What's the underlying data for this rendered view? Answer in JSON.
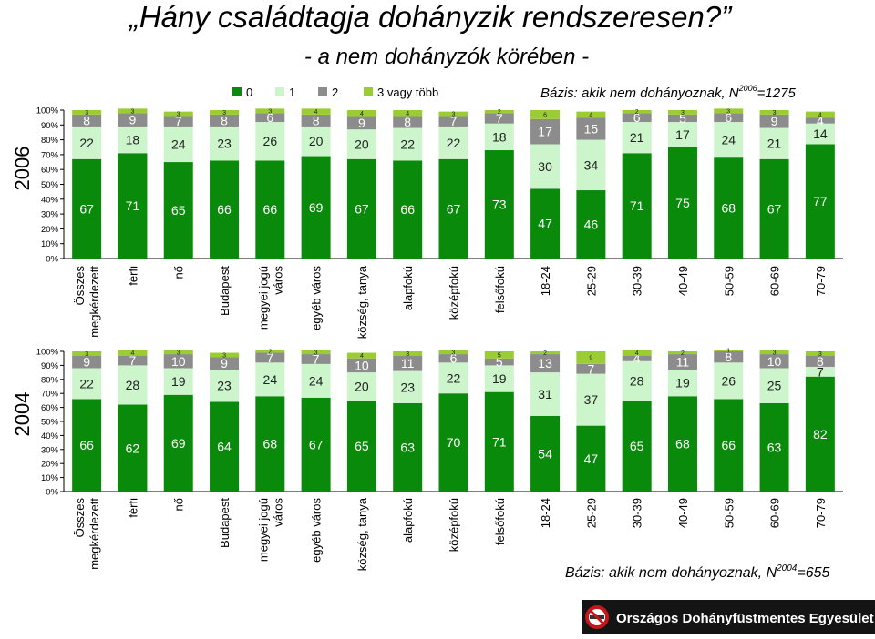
{
  "title": "„Hány családtagja dohányzik rendszeresen?”",
  "subtitle": "- a nem dohányzók körében -",
  "legend": [
    {
      "label": "0",
      "color": "#0a8a0a"
    },
    {
      "label": "1",
      "color": "#ccf5cc"
    },
    {
      "label": "2",
      "color": "#8c8c8c"
    },
    {
      "label": "3 vagy több",
      "color": "#9acd32"
    }
  ],
  "footer": {
    "org": "Országos Dohányfüstmentes Egyesület"
  },
  "chart_data": [
    {
      "type": "bar",
      "stacked": true,
      "year_label": "2006",
      "base_prefix": "Bázis: akik nem dohányoznak, N",
      "base_sup": "2006",
      "base_suffix": "=1275",
      "y_ticks": [
        "0%",
        "10%",
        "20%",
        "30%",
        "40%",
        "50%",
        "60%",
        "70%",
        "80%",
        "90%",
        "100%"
      ],
      "ylim": [
        0,
        100
      ],
      "categories": [
        [
          "Összes",
          "megkérdezett"
        ],
        [
          "férfi"
        ],
        [
          "nő"
        ],
        [
          "Budapest"
        ],
        [
          "megyei jogú",
          "város"
        ],
        [
          "egyéb város"
        ],
        [
          "község, tanya"
        ],
        [
          "alapfokú"
        ],
        [
          "középfokú"
        ],
        [
          "felsőfokú"
        ],
        [
          "18-24"
        ],
        [
          "25-29"
        ],
        [
          "30-39"
        ],
        [
          "40-49"
        ],
        [
          "50-59"
        ],
        [
          "60-69"
        ],
        [
          "70-79"
        ]
      ],
      "series": [
        {
          "name": "0",
          "values": [
            67,
            71,
            65,
            66,
            66,
            69,
            67,
            66,
            67,
            73,
            47,
            46,
            71,
            75,
            68,
            67,
            77
          ]
        },
        {
          "name": "1",
          "values": [
            22,
            18,
            24,
            23,
            26,
            20,
            20,
            22,
            22,
            18,
            30,
            34,
            21,
            17,
            24,
            21,
            14
          ]
        },
        {
          "name": "2",
          "values": [
            8,
            9,
            7,
            8,
            6,
            8,
            9,
            8,
            7,
            7,
            17,
            15,
            6,
            5,
            6,
            9,
            4
          ]
        },
        {
          "name": "3 vagy több",
          "values": [
            3,
            3,
            3,
            3,
            3,
            4,
            4,
            4,
            3,
            2,
            6,
            4,
            2,
            3,
            3,
            3,
            4
          ]
        }
      ]
    },
    {
      "type": "bar",
      "stacked": true,
      "year_label": "2004",
      "base_prefix": "Bázis: akik nem dohányoznak, N",
      "base_sup": "2004",
      "base_suffix": "=655",
      "y_ticks": [
        "0%",
        "10%",
        "20%",
        "30%",
        "40%",
        "50%",
        "60%",
        "70%",
        "80%",
        "90%",
        "100%"
      ],
      "ylim": [
        0,
        100
      ],
      "categories": [
        [
          "Összes",
          "megkérdezett"
        ],
        [
          "férfi"
        ],
        [
          "nő"
        ],
        [
          "Budapest"
        ],
        [
          "megyei jogú",
          "város"
        ],
        [
          "egyéb város"
        ],
        [
          "község, tanya"
        ],
        [
          "alapfokú"
        ],
        [
          "középfokú"
        ],
        [
          "felsőfokú"
        ],
        [
          "18-24"
        ],
        [
          "25-29"
        ],
        [
          "30-39"
        ],
        [
          "40-49"
        ],
        [
          "50-59"
        ],
        [
          "60-69"
        ],
        [
          "70-79"
        ]
      ],
      "series": [
        {
          "name": "0",
          "values": [
            66,
            62,
            69,
            64,
            68,
            67,
            65,
            63,
            70,
            71,
            54,
            47,
            65,
            68,
            66,
            63,
            82
          ]
        },
        {
          "name": "1",
          "values": [
            22,
            28,
            19,
            23,
            24,
            24,
            20,
            23,
            22,
            19,
            31,
            37,
            28,
            19,
            26,
            25,
            7
          ]
        },
        {
          "name": "2",
          "values": [
            9,
            7,
            10,
            9,
            7,
            7,
            10,
            11,
            6,
            5,
            13,
            7,
            4,
            11,
            8,
            10,
            8
          ]
        },
        {
          "name": "3 vagy több",
          "values": [
            3,
            4,
            3,
            3,
            2,
            3,
            4,
            3,
            3,
            5,
            2,
            9,
            4,
            2,
            1,
            3,
            3
          ]
        }
      ]
    }
  ]
}
